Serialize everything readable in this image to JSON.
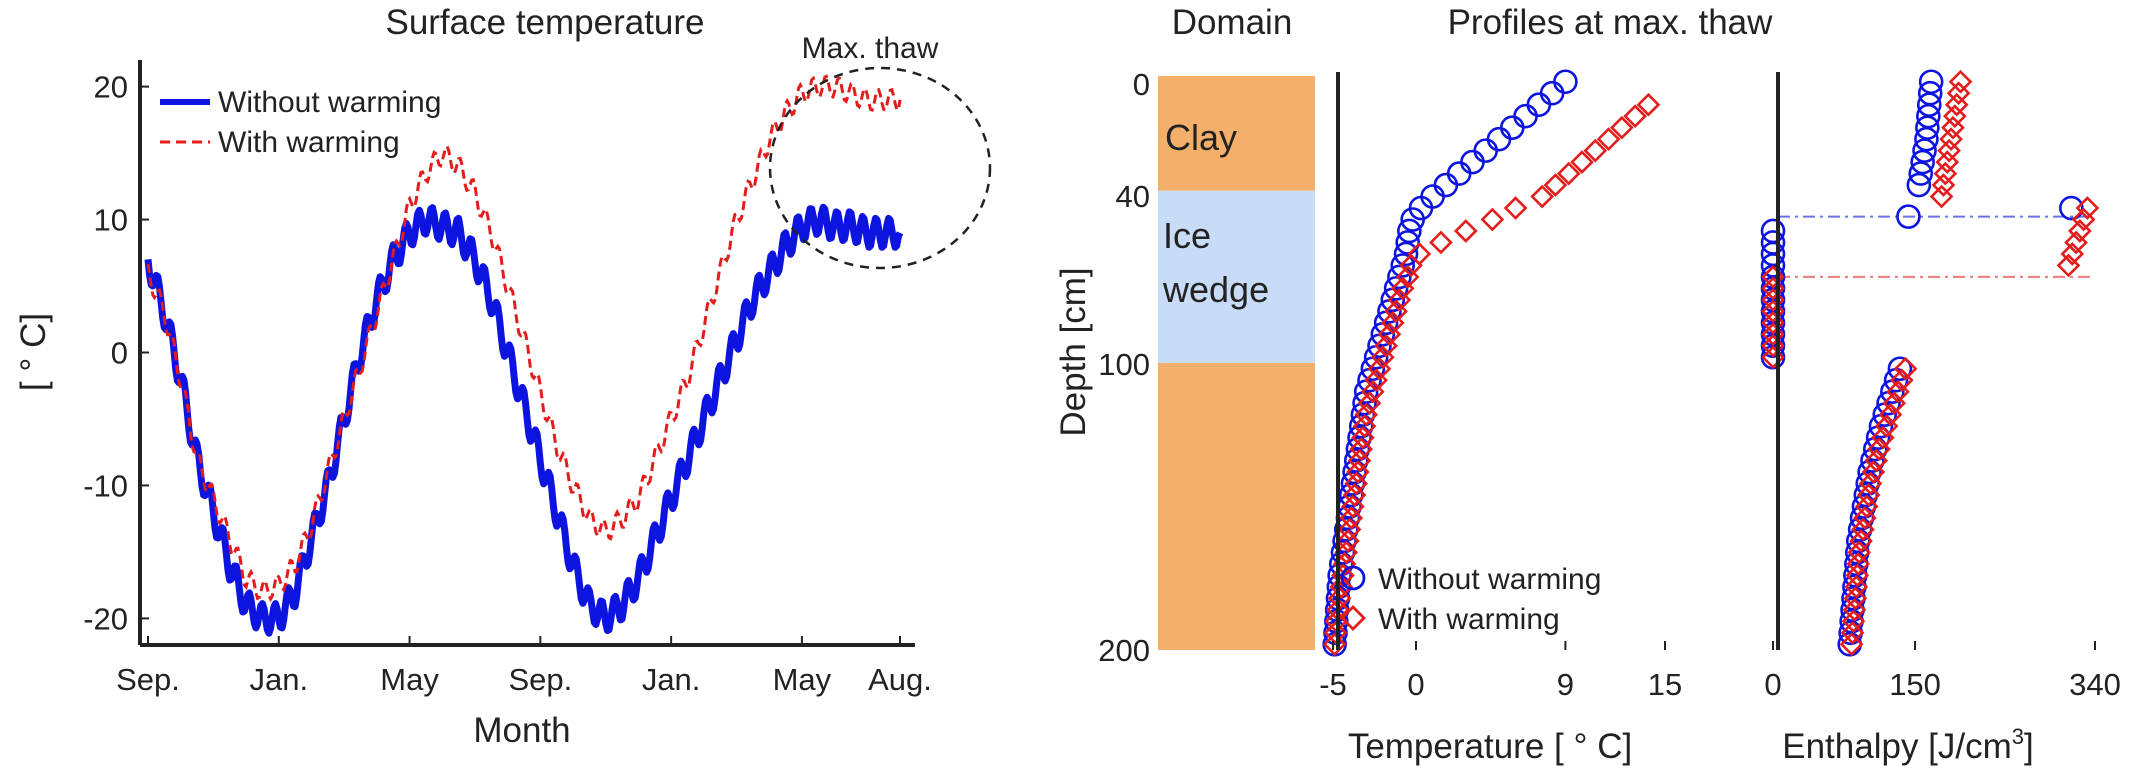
{
  "chart_data": [
    {
      "type": "line",
      "title": "Surface temperature",
      "xlabel": "Month",
      "ylabel": "[ ° C]",
      "xticks": [
        "Sep.",
        "Jan.",
        "May",
        "Sep.",
        "Jan.",
        "May",
        "Aug."
      ],
      "yticks": [
        20,
        10,
        0,
        -10,
        -20
      ],
      "ylim": [
        -22,
        22
      ],
      "annotation": "Max. thaw",
      "series": [
        {
          "name": "Without warming",
          "color": "#0d14e0",
          "style": "solid",
          "month": [
            0,
            0.5,
            1,
            1.5,
            2,
            2.5,
            3,
            3.5,
            4,
            4.5,
            5,
            5.5,
            6,
            6.5,
            7,
            7.5,
            8,
            8.5,
            9,
            9.5,
            10,
            10.5,
            11,
            11.5,
            12,
            12.5,
            13,
            13.5,
            14,
            14.5,
            15,
            15.5,
            16,
            16.5,
            17,
            17.5,
            18,
            18.5,
            19,
            19.5,
            20,
            20.5,
            21,
            21.5,
            22,
            22.5,
            23
          ],
          "temp": [
            7,
            3,
            -2,
            -8,
            -12,
            -16,
            -19,
            -20,
            -20,
            -18,
            -14,
            -10,
            -5,
            0,
            4,
            7,
            9,
            10,
            9.5,
            9,
            7,
            4,
            0,
            -4,
            -8,
            -12,
            -16,
            -19,
            -20,
            -19,
            -17,
            -14,
            -11,
            -8,
            -5,
            -2,
            1,
            4,
            6,
            8,
            9.5,
            10,
            9.5,
            9.5,
            9,
            9,
            9
          ]
        },
        {
          "name": "With warming",
          "color": "#e51c1c",
          "style": "dashed",
          "month": [
            0,
            0.5,
            1,
            1.5,
            2,
            2.5,
            3,
            3.5,
            4,
            4.5,
            5,
            5.5,
            6,
            6.5,
            7,
            7.5,
            8,
            8.5,
            9,
            9.5,
            10,
            10.5,
            11,
            11.5,
            12,
            12.5,
            13,
            13.5,
            14,
            14.5,
            15,
            15.5,
            16,
            16.5,
            17,
            17.5,
            18,
            18.5,
            19,
            19.5,
            20,
            20.5,
            21,
            21.5,
            22,
            22.5,
            23
          ],
          "temp": [
            6,
            3,
            -2,
            -8,
            -11,
            -14,
            -17,
            -18,
            -17.5,
            -16,
            -13,
            -9,
            -5,
            -1,
            3,
            7,
            11,
            13.5,
            15,
            14,
            12,
            9,
            5,
            1,
            -3,
            -7,
            -10,
            -12.5,
            -13.5,
            -12.5,
            -11,
            -8,
            -5,
            -2,
            2,
            6,
            10,
            13,
            16,
            18,
            19.5,
            20,
            20,
            19.5,
            19,
            19,
            19
          ]
        }
      ]
    },
    {
      "type": "table",
      "title": "Domain",
      "ylabel": "Depth [cm]",
      "yticks": [
        0,
        40,
        100,
        200
      ],
      "layers": [
        {
          "name": "Clay",
          "top": 0,
          "bottom": 40,
          "color": "#f4b06b"
        },
        {
          "name": "Ice wedge",
          "line1": "Ice",
          "line2": "wedge",
          "top": 40,
          "bottom": 100,
          "color": "#c8dbf7"
        },
        {
          "name": "",
          "top": 100,
          "bottom": 200,
          "color": "#f4b06b"
        }
      ]
    },
    {
      "type": "scatter",
      "title": "Profiles at max. thaw",
      "xlabel": "Temperature [ ° C]",
      "xticks": [
        -5,
        0,
        9,
        15
      ],
      "xlim": [
        -5,
        15
      ],
      "ylim": [
        0,
        200
      ],
      "series": [
        {
          "name": "Without warming",
          "marker": "circle",
          "color": "#0d14e0",
          "depth": [
            2,
            6,
            10,
            14,
            18,
            22,
            26,
            30,
            34,
            38,
            42,
            46,
            50,
            54,
            58,
            62,
            66,
            70,
            74,
            78,
            82,
            86,
            90,
            94,
            98,
            102,
            106,
            110,
            114,
            118,
            122,
            126,
            130,
            134,
            138,
            142,
            146,
            150,
            154,
            158,
            162,
            166,
            170,
            174,
            178,
            182,
            186,
            190,
            194,
            198
          ],
          "temp": [
            9,
            8.2,
            7.4,
            6.6,
            5.8,
            5,
            4.2,
            3.4,
            2.6,
            1.8,
            1,
            0.3,
            -0.2,
            -0.4,
            -0.5,
            -0.6,
            -0.8,
            -1,
            -1.2,
            -1.4,
            -1.6,
            -1.8,
            -2,
            -2.2,
            -2.4,
            -2.6,
            -2.8,
            -3,
            -3.1,
            -3.2,
            -3.3,
            -3.4,
            -3.5,
            -3.6,
            -3.7,
            -3.8,
            -3.9,
            -4,
            -4.1,
            -4.2,
            -4.3,
            -4.4,
            -4.5,
            -4.6,
            -4.65,
            -4.7,
            -4.75,
            -4.8,
            -4.85,
            -4.9
          ]
        },
        {
          "name": "With warming",
          "marker": "diamond",
          "color": "#e51c1c",
          "depth": [
            10,
            14,
            18,
            22,
            26,
            30,
            34,
            38,
            42,
            46,
            50,
            54,
            58,
            62,
            66,
            70,
            74,
            78,
            82,
            86,
            90,
            94,
            98,
            102,
            106,
            110,
            114,
            118,
            122,
            126,
            130,
            134,
            138,
            142,
            146,
            150,
            154,
            158,
            162,
            166,
            170,
            174,
            178,
            182,
            186,
            190,
            194,
            198
          ],
          "temp": [
            14,
            13.2,
            12.4,
            11.6,
            10.8,
            10,
            9.2,
            8.4,
            7.6,
            6,
            4.6,
            3,
            1.5,
            0.2,
            -0.3,
            -0.5,
            -0.8,
            -1,
            -1.2,
            -1.4,
            -1.6,
            -1.8,
            -2,
            -2.2,
            -2.4,
            -2.6,
            -2.8,
            -3,
            -3.1,
            -3.2,
            -3.3,
            -3.4,
            -3.5,
            -3.6,
            -3.7,
            -3.8,
            -3.9,
            -4,
            -4.1,
            -4.2,
            -4.3,
            -4.4,
            -4.5,
            -4.6,
            -4.7,
            -4.8,
            -4.85,
            -4.9
          ]
        }
      ]
    },
    {
      "type": "scatter",
      "xlabel": "Enthalpy [J/cm",
      "xlabel_sup": "3",
      "xlabel_end": "]",
      "xticks": [
        0,
        150,
        340
      ],
      "xlim": [
        0,
        340
      ],
      "ylim": [
        0,
        200
      ],
      "ref_lines": [
        {
          "depth": 49,
          "color": "#6b72e8",
          "style": "dash-dot"
        },
        {
          "depth": 70,
          "color": "#ee7b7b",
          "style": "dash-dot"
        }
      ],
      "series": [
        {
          "name": "Without warming",
          "marker": "circle",
          "color": "#0d14e0",
          "depth": [
            2,
            6,
            10,
            14,
            18,
            22,
            26,
            30,
            34,
            38,
            46,
            49,
            54,
            58,
            62,
            66,
            70,
            74,
            78,
            82,
            86,
            90,
            94,
            98,
            102,
            106,
            110,
            114,
            118,
            122,
            126,
            130,
            134,
            138,
            142,
            146,
            150,
            154,
            158,
            162,
            166,
            170,
            174,
            178,
            182,
            186,
            190,
            194,
            198
          ],
          "enthalpy": [
            167,
            166,
            165,
            164,
            163,
            162,
            160,
            158,
            156,
            154,
            315,
            143,
            0,
            0,
            0,
            0,
            0,
            0,
            0,
            0,
            0,
            0,
            0,
            0,
            134,
            130,
            126,
            122,
            118,
            114,
            111,
            108,
            105,
            102,
            100,
            98,
            96,
            94,
            92,
            90,
            89,
            88,
            87,
            86,
            85,
            84,
            83,
            82,
            81
          ]
        },
        {
          "name": "With warming",
          "marker": "diamond",
          "color": "#e51c1c",
          "depth": [
            2,
            6,
            10,
            14,
            18,
            22,
            26,
            30,
            34,
            38,
            42,
            46,
            50,
            54,
            58,
            62,
            66,
            70,
            74,
            78,
            82,
            86,
            90,
            94,
            98,
            102,
            106,
            110,
            114,
            118,
            122,
            126,
            130,
            134,
            138,
            142,
            146,
            150,
            154,
            158,
            162,
            166,
            170,
            174,
            178,
            182,
            186,
            190,
            194,
            198
          ],
          "enthalpy": [
            198,
            196,
            194,
            192,
            190,
            188,
            186,
            184,
            182,
            180,
            178,
            332,
            328,
            324,
            320,
            316,
            312,
            0,
            0,
            0,
            0,
            0,
            0,
            0,
            0,
            140,
            136,
            132,
            128,
            124,
            120,
            116,
            112,
            109,
            106,
            103,
            101,
            99,
            97,
            95,
            93,
            91,
            90,
            89,
            88,
            87,
            86,
            85,
            84,
            83
          ]
        }
      ]
    }
  ]
}
